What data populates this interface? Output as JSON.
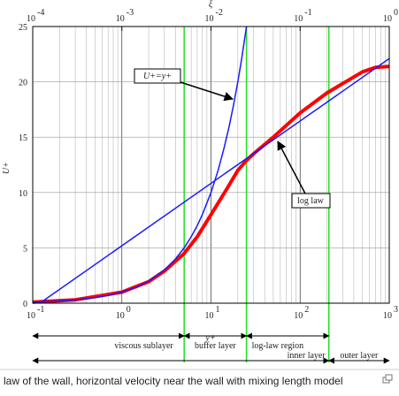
{
  "chart_data": {
    "type": "line",
    "xlabel": "y+",
    "ylabel": "U+",
    "x2label": "ξ",
    "xlog": true,
    "grid": true,
    "minor_grid": true,
    "xlim": [
      0.1,
      1000
    ],
    "ylim": [
      0,
      25
    ],
    "x2lim": [
      0.0001,
      1
    ],
    "xticks": [
      {
        "value": 0.1,
        "label": "10",
        "power": "-1"
      },
      {
        "value": 1,
        "label": "10",
        "power": "0"
      },
      {
        "value": 10,
        "label": "10",
        "power": "1"
      },
      {
        "value": 100,
        "label": "10",
        "power": "2"
      },
      {
        "value": 1000,
        "label": "10",
        "power": "3"
      }
    ],
    "x2ticks": [
      {
        "value": 0.0001,
        "label": "10",
        "power": "-4"
      },
      {
        "value": 0.001,
        "label": "10",
        "power": "-3"
      },
      {
        "value": 0.01,
        "label": "10",
        "power": "-2"
      },
      {
        "value": 0.1,
        "label": "10",
        "power": "-1"
      },
      {
        "value": 1,
        "label": "10",
        "power": "0"
      }
    ],
    "yticks": [
      0,
      5,
      10,
      15,
      20,
      25
    ],
    "series": [
      {
        "name": "U+=y+",
        "color": "#1a1aff",
        "x": [
          0.1,
          0.2,
          0.3,
          0.5,
          0.7,
          1,
          1.5,
          2,
          3,
          4,
          5,
          6,
          7,
          8,
          10,
          12,
          14,
          16,
          18,
          20,
          22,
          25
        ],
        "values": [
          0.1,
          0.2,
          0.3,
          0.5,
          0.7,
          1,
          1.5,
          2,
          3,
          4,
          5,
          6,
          7,
          8,
          10,
          12,
          14,
          16,
          18,
          20,
          22,
          25
        ]
      },
      {
        "name": "log law",
        "color": "#1a1aff",
        "x": [
          0.12,
          1000
        ],
        "values": [
          0,
          22.1
        ]
      },
      {
        "color": "#ff0000",
        "x": [
          0.1,
          0.3,
          1,
          2,
          3,
          5,
          7,
          10,
          15,
          20,
          25,
          30,
          50,
          100,
          200,
          500,
          700,
          1000
        ],
        "values": [
          0.1,
          0.3,
          1,
          1.95,
          2.9,
          4.5,
          6,
          8,
          10.3,
          12,
          12.9,
          13.5,
          15,
          17.2,
          19,
          20.9,
          21.3,
          21.4
        ]
      }
    ],
    "vlines": [
      5,
      25,
      210
    ],
    "vline_color": "#22dd22",
    "regions": [
      "viscous sublayer",
      "buffer layer",
      "log-law region",
      "inner layer",
      "outer layer"
    ]
  },
  "caption": "law of the wall, horizontal velocity near the wall with mixing length model"
}
